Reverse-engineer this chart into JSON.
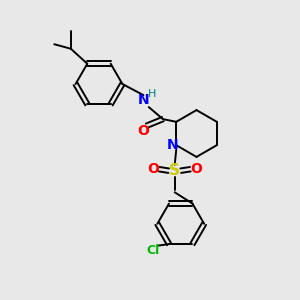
{
  "background_color": "#e8e8e8",
  "bond_color": "#000000",
  "atom_colors": {
    "N_amide": "#0000ff",
    "H": "#008080",
    "O": "#ff0000",
    "S": "#cccc00",
    "Cl": "#00bb00",
    "C": "#000000"
  },
  "figsize": [
    3.0,
    3.0
  ],
  "dpi": 100
}
